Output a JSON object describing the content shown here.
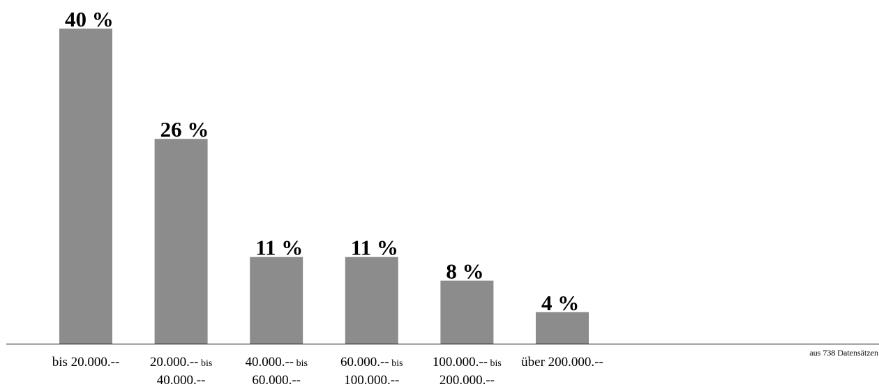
{
  "chart_data": {
    "type": "bar",
    "categories": [
      {
        "line1": "bis 20.000.--",
        "line1_small": "",
        "line2": ""
      },
      {
        "line1": "20.000.--",
        "line1_small": "bis",
        "line2": "40.000.--"
      },
      {
        "line1": "40.000.--",
        "line1_small": "bis",
        "line2": "60.000.--"
      },
      {
        "line1": "60.000.--",
        "line1_small": "bis",
        "line2": "100.000.--"
      },
      {
        "line1": "100.000.--",
        "line1_small": "bis",
        "line2": "200.000.--"
      },
      {
        "line1": "über 200.000.--",
        "line1_small": "",
        "line2": ""
      }
    ],
    "values": [
      40,
      26,
      11,
      11,
      8,
      4
    ],
    "value_labels": [
      "40 %",
      "26 %",
      "11 %",
      "11 %",
      "8 %",
      "4 %"
    ],
    "ylim": [
      0,
      40
    ],
    "bar_color": "#8c8c8c",
    "grid": false,
    "note": "aus 738 Datensätzen"
  }
}
